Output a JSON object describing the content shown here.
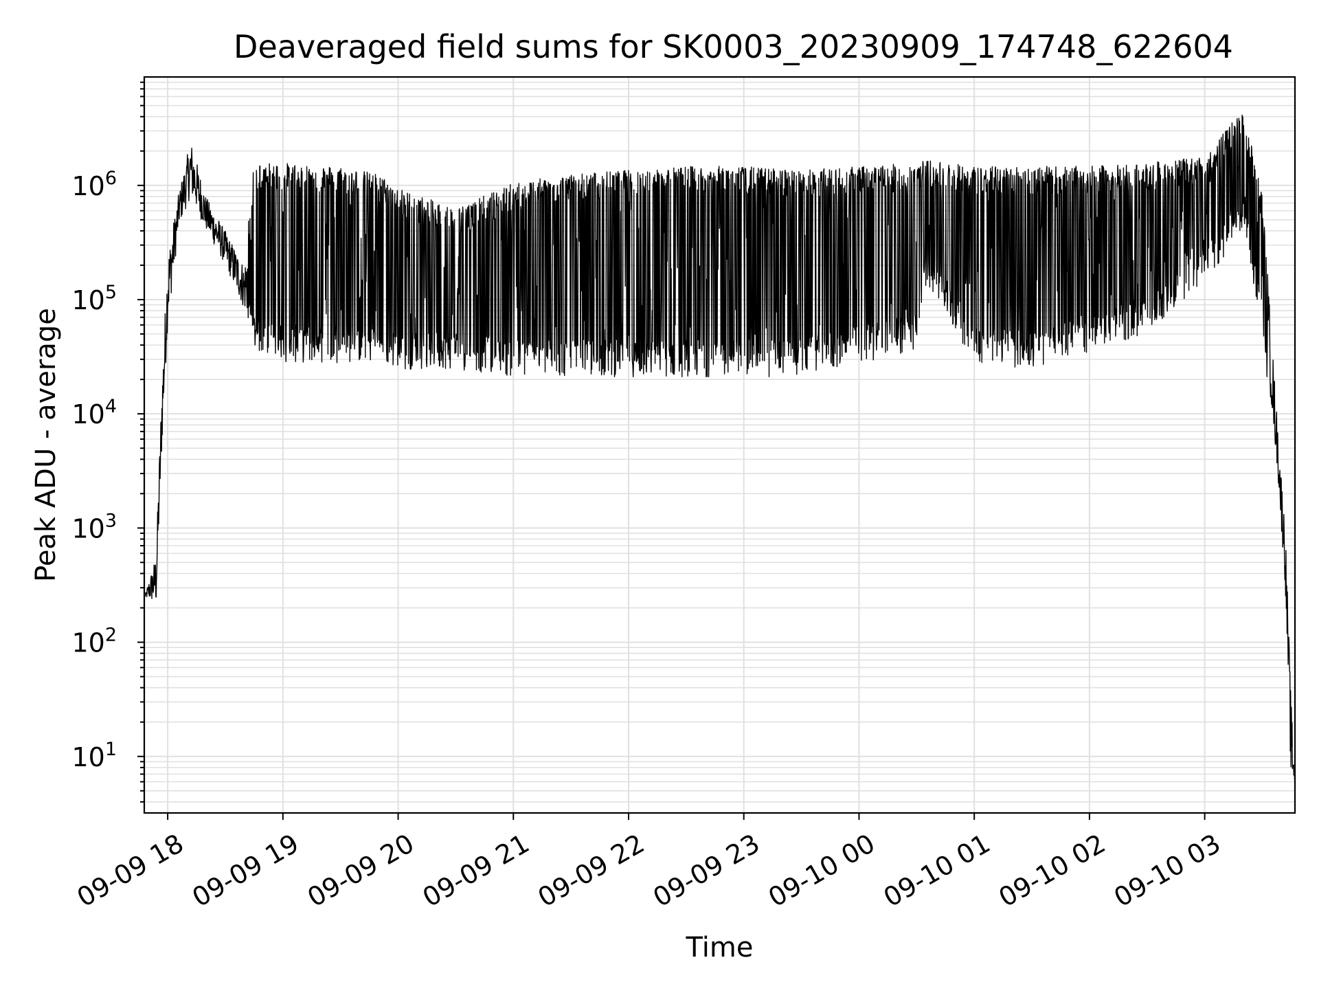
{
  "chart_data": {
    "type": "line",
    "title": "Deaveraged field sums for SK0003_20230909_174748_622604",
    "xlabel": "Time",
    "ylabel": "Peak ADU - average",
    "yscale": "log",
    "xlim": [
      "09-09 17:47:48",
      "09-10 03:47:00"
    ],
    "ylim": [
      3.2,
      8900000
    ],
    "grid": true,
    "x_tick_labels": [
      "09-09 18",
      "09-09 19",
      "09-09 20",
      "09-09 21",
      "09-09 22",
      "09-09 23",
      "09-10 00",
      "09-10 01",
      "09-10 02",
      "09-10 03"
    ],
    "y_tick_labels": [
      {
        "base": "10",
        "exp": "1"
      },
      {
        "base": "10",
        "exp": "2"
      },
      {
        "base": "10",
        "exp": "3"
      },
      {
        "base": "10",
        "exp": "4"
      },
      {
        "base": "10",
        "exp": "5"
      },
      {
        "base": "10",
        "exp": "6"
      }
    ],
    "line_color": "#000000",
    "grid_color": "#e0e0e0",
    "series": [
      {
        "envelope": [
          {
            "x": "09-09 17:48",
            "low": 250,
            "high": 250
          },
          {
            "x": "09-09 17:54",
            "low": 210,
            "high": 600
          },
          {
            "x": "09-09 17:57",
            "low": 5000,
            "high": 20000
          },
          {
            "x": "09-09 18:00",
            "low": 60000,
            "high": 250000
          },
          {
            "x": "09-09 18:06",
            "low": 450000,
            "high": 900000
          },
          {
            "x": "09-09 18:12",
            "low": 800000,
            "high": 2500000
          },
          {
            "x": "09-09 18:20",
            "low": 400000,
            "high": 800000
          },
          {
            "x": "09-09 18:30",
            "low": 200000,
            "high": 400000
          },
          {
            "x": "09-09 18:40",
            "low": 80000,
            "high": 200000
          },
          {
            "x": "09-09 18:45",
            "low": 50000,
            "high": 1500000
          },
          {
            "x": "09-09 19:00",
            "low": 40000,
            "high": 1500000
          },
          {
            "x": "09-09 19:30",
            "low": 40000,
            "high": 1400000
          },
          {
            "x": "09-09 19:50",
            "low": 40000,
            "high": 1200000
          },
          {
            "x": "09-09 20:00",
            "low": 35000,
            "high": 900000
          },
          {
            "x": "09-09 20:30",
            "low": 35000,
            "high": 600000
          },
          {
            "x": "09-09 21:00",
            "low": 30000,
            "high": 1000000
          },
          {
            "x": "09-09 21:30",
            "low": 30000,
            "high": 1200000
          },
          {
            "x": "09-09 22:00",
            "low": 30000,
            "high": 1300000
          },
          {
            "x": "09-09 22:30",
            "low": 30000,
            "high": 1400000
          },
          {
            "x": "09-09 23:00",
            "low": 30000,
            "high": 1400000
          },
          {
            "x": "09-09 23:30",
            "low": 30000,
            "high": 1300000
          },
          {
            "x": "09-10 00:00",
            "low": 40000,
            "high": 1400000
          },
          {
            "x": "09-10 00:30",
            "low": 50000,
            "high": 1500000
          },
          {
            "x": "09-10 00:35",
            "low": 200000,
            "high": 1600000
          },
          {
            "x": "09-10 01:00",
            "low": 40000,
            "high": 1400000
          },
          {
            "x": "09-10 01:30",
            "low": 35000,
            "high": 1400000
          },
          {
            "x": "09-10 02:00",
            "low": 50000,
            "high": 1400000
          },
          {
            "x": "09-10 02:30",
            "low": 70000,
            "high": 1500000
          },
          {
            "x": "09-10 03:00",
            "low": 200000,
            "high": 1700000
          },
          {
            "x": "09-10 03:20",
            "low": 500000,
            "high": 4500000
          },
          {
            "x": "09-10 03:30",
            "low": 80000,
            "high": 800000
          },
          {
            "x": "09-10 03:38",
            "low": 3000,
            "high": 8000
          },
          {
            "x": "09-10 03:42",
            "low": 300,
            "high": 1000
          },
          {
            "x": "09-10 03:45",
            "low": 6,
            "high": 30
          },
          {
            "x": "09-10 03:47",
            "low": 6,
            "high": 7
          }
        ]
      }
    ]
  }
}
